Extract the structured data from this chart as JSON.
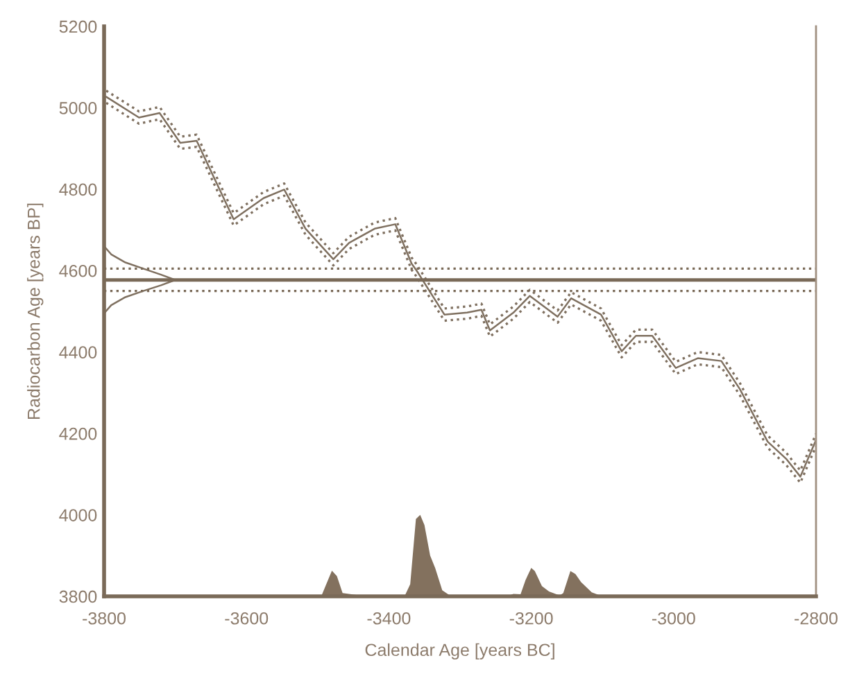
{
  "chart_data": {
    "type": "line",
    "xlabel": "Calendar Age [years BC]",
    "ylabel": "Radiocarbon Age [years BP]",
    "xlim": [
      -3800,
      -2800
    ],
    "xticks": [
      -3800,
      -3600,
      -3400,
      -3200,
      -3000,
      -2800
    ],
    "ylim": [
      3800,
      5200
    ],
    "yticks": [
      3800,
      4000,
      4200,
      4400,
      4600,
      4800,
      5000,
      5200
    ],
    "grid": false,
    "legend": false,
    "ref_lines": [
      {
        "axis": "y",
        "value": 4577,
        "color": "#7a6a58",
        "line_style": "solid"
      },
      {
        "axis": "y",
        "value": 4605,
        "color": "#7a6a58",
        "line_style": "dotted"
      },
      {
        "axis": "y",
        "value": 4550,
        "color": "#7a6a58",
        "line_style": "dotted"
      }
    ],
    "series": [
      {
        "color": "#7f7060",
        "line_style": "solid",
        "x": [
          -3797,
          -3751,
          -3722,
          -3693,
          -3670,
          -3618,
          -3576,
          -3547,
          -3517,
          -3478,
          -3456,
          -3420,
          -3391,
          -3368,
          -3361,
          -3322,
          -3290,
          -3270,
          -3258,
          -3225,
          -3202,
          -3163,
          -3144,
          -3102,
          -3073,
          -3053,
          -3030,
          -2997,
          -2966,
          -2933,
          -2907,
          -2868,
          -2842,
          -2822,
          -2800
        ],
        "values": [
          5027,
          4976,
          4987,
          4914,
          4919,
          4726,
          4778,
          4799,
          4703,
          4628,
          4668,
          4703,
          4714,
          4617,
          4600,
          4492,
          4497,
          4504,
          4453,
          4497,
          4538,
          4487,
          4532,
          4492,
          4402,
          4440,
          4440,
          4361,
          4385,
          4378,
          4309,
          4180,
          4138,
          4094,
          4184
        ]
      },
      {
        "color": "#7f7060",
        "line_style": "dotted",
        "x": [
          -3797,
          -3751,
          -3722,
          -3693,
          -3670,
          -3618,
          -3576,
          -3547,
          -3517,
          -3478,
          -3456,
          -3420,
          -3391,
          -3368,
          -3361,
          -3322,
          -3290,
          -3270,
          -3258,
          -3225,
          -3202,
          -3163,
          -3144,
          -3102,
          -3073,
          -3053,
          -3030,
          -2997,
          -2966,
          -2933,
          -2907,
          -2868,
          -2842,
          -2822,
          -2800
        ],
        "values": [
          5042,
          4991,
          5002,
          4929,
          4934,
          4741,
          4793,
          4814,
          4718,
          4643,
          4683,
          4718,
          4729,
          4632,
          4615,
          4507,
          4512,
          4519,
          4468,
          4512,
          4553,
          4502,
          4547,
          4507,
          4417,
          4455,
          4455,
          4376,
          4400,
          4393,
          4324,
          4195,
          4153,
          4109,
          4199
        ]
      },
      {
        "color": "#7f7060",
        "line_style": "dotted",
        "x": [
          -3797,
          -3751,
          -3722,
          -3693,
          -3670,
          -3618,
          -3576,
          -3547,
          -3517,
          -3478,
          -3456,
          -3420,
          -3391,
          -3368,
          -3361,
          -3322,
          -3290,
          -3270,
          -3258,
          -3225,
          -3202,
          -3163,
          -3144,
          -3102,
          -3073,
          -3053,
          -3030,
          -2997,
          -2966,
          -2933,
          -2907,
          -2868,
          -2842,
          -2822,
          -2800
        ],
        "values": [
          5012,
          4961,
          4972,
          4899,
          4904,
          4711,
          4763,
          4784,
          4688,
          4613,
          4653,
          4688,
          4699,
          4602,
          4585,
          4477,
          4482,
          4489,
          4438,
          4482,
          4523,
          4472,
          4517,
          4477,
          4387,
          4425,
          4425,
          4346,
          4370,
          4363,
          4294,
          4165,
          4123,
          4079,
          4169
        ]
      },
      {
        "color": "#7f7060",
        "line_style": "solid",
        "x": [
          -3800,
          -3790,
          -3770,
          -3745,
          -3720,
          -3700,
          -3720,
          -3745,
          -3770,
          -3790,
          -3800
        ],
        "values": [
          4660,
          4640,
          4620,
          4605,
          4590,
          4577,
          4564,
          4550,
          4535,
          4515,
          4495
        ]
      },
      {
        "type": "area",
        "color": "#83715e",
        "x": [
          -3495,
          -3480,
          -3473,
          -3465,
          -3440,
          -3430,
          -3378,
          -3370,
          -3362,
          -3356,
          -3350,
          -3342,
          -3335,
          -3325,
          -3315,
          -3300,
          -3290,
          -3265,
          -3255,
          -3235,
          -3225,
          -3215,
          -3208,
          -3200,
          -3195,
          -3185,
          -3175,
          -3160,
          -3155,
          -3145,
          -3138,
          -3130,
          -3115,
          -3100
        ],
        "values": [
          3800,
          3863,
          3850,
          3808,
          3802,
          3800,
          3800,
          3830,
          3990,
          4000,
          3975,
          3900,
          3870,
          3815,
          3803,
          3800,
          3803,
          3803,
          3800,
          3800,
          3806,
          3805,
          3840,
          3870,
          3862,
          3825,
          3812,
          3802,
          3808,
          3862,
          3855,
          3835,
          3810,
          3800
        ]
      }
    ]
  }
}
